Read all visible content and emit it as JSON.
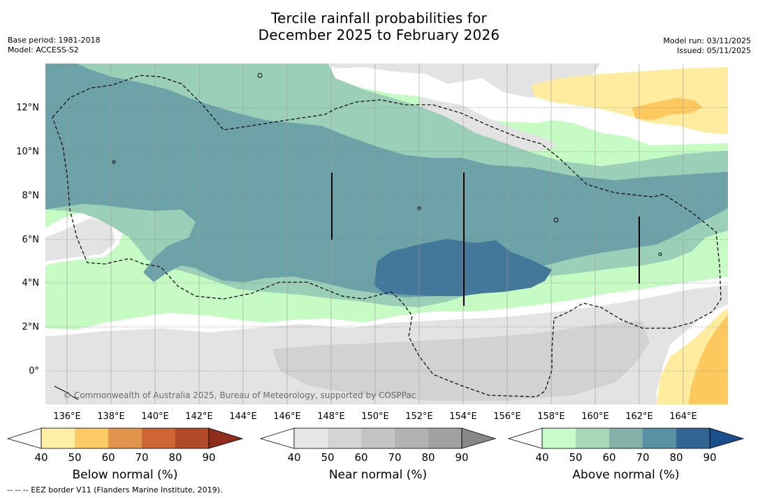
{
  "title": {
    "line1": "Tercile rainfall probabilities for",
    "line2": "December 2025 to February 2026"
  },
  "meta_left": {
    "base_period": "Base period: 1981-2018",
    "model": "Model: ACCESS-S2"
  },
  "meta_right": {
    "model_run": "Model run: 03/11/2025",
    "issued": "Issued: 05/11/2025"
  },
  "map": {
    "lon_labels": [
      "136°E",
      "138°E",
      "140°E",
      "142°E",
      "144°E",
      "146°E",
      "148°E",
      "150°E",
      "152°E",
      "154°E",
      "156°E",
      "158°E",
      "160°E",
      "162°E",
      "164°E"
    ],
    "lat_labels": [
      "12°N",
      "10°N",
      "8°N",
      "6°N",
      "4°N",
      "2°N",
      "0°"
    ],
    "copyright": "© Commonwealth of Australia 2025, Bureau of Meteorology, supported by COSPPac",
    "colors": {
      "below_40": "#ffec9e",
      "below_50": "#fdc85e",
      "near_40": "#e3e3e3",
      "near_50": "#d2d2d2",
      "above_40": "#c6fbc4",
      "above_50": "#9bcfb8",
      "above_60": "#6da2a8",
      "above_70": "#43789a"
    }
  },
  "colorbars": [
    {
      "title": "Below normal (%)",
      "ticks": [
        "40",
        "50",
        "60",
        "70",
        "80",
        "90"
      ],
      "colors": [
        "#ffefa4",
        "#fdcb65",
        "#e0944c",
        "#cd6535",
        "#b14a28",
        "#8e2d1c"
      ]
    },
    {
      "title": "Near normal (%)",
      "ticks": [
        "40",
        "50",
        "60",
        "70",
        "80",
        "90"
      ],
      "colors": [
        "#e6e6e6",
        "#d4d4d4",
        "#c4c4c4",
        "#b2b2b2",
        "#a1a1a1",
        "#888888"
      ]
    },
    {
      "title": "Above normal (%)",
      "ticks": [
        "40",
        "50",
        "60",
        "70",
        "80",
        "90"
      ],
      "colors": [
        "#c6fbca",
        "#a5d9b8",
        "#83b2a8",
        "#5890a4",
        "#336593",
        "#1a4f8c"
      ]
    }
  ],
  "footnote": "--  --  -- EEZ border V11 (Flanders Marine Institute, 2019)."
}
